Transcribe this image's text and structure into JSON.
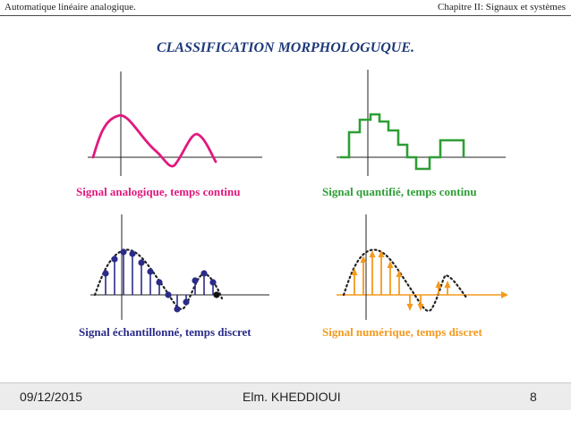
{
  "header": {
    "left": "Automatique linéaire analogique.",
    "right": "Chapitre II: Signaux et systèmes"
  },
  "title": "CLASSIFICATION MORPHOLOGUQUE.",
  "panels": [
    {
      "id": "analog",
      "caption": "Signal analogique, temps continu",
      "color": "#e0197d"
    },
    {
      "id": "quantized",
      "caption": "Signal quantifié, temps continu",
      "color": "#2e9e35"
    },
    {
      "id": "sampled",
      "caption": "Signal échantillonné, temps discret",
      "color": "#2b2b8a"
    },
    {
      "id": "digital",
      "caption": "Signal numérique, temps discret",
      "color": "#f39a1e"
    }
  ],
  "footer": {
    "date": "09/12/2015",
    "author": "Elm. KHEDDIOUI",
    "page": "8"
  }
}
